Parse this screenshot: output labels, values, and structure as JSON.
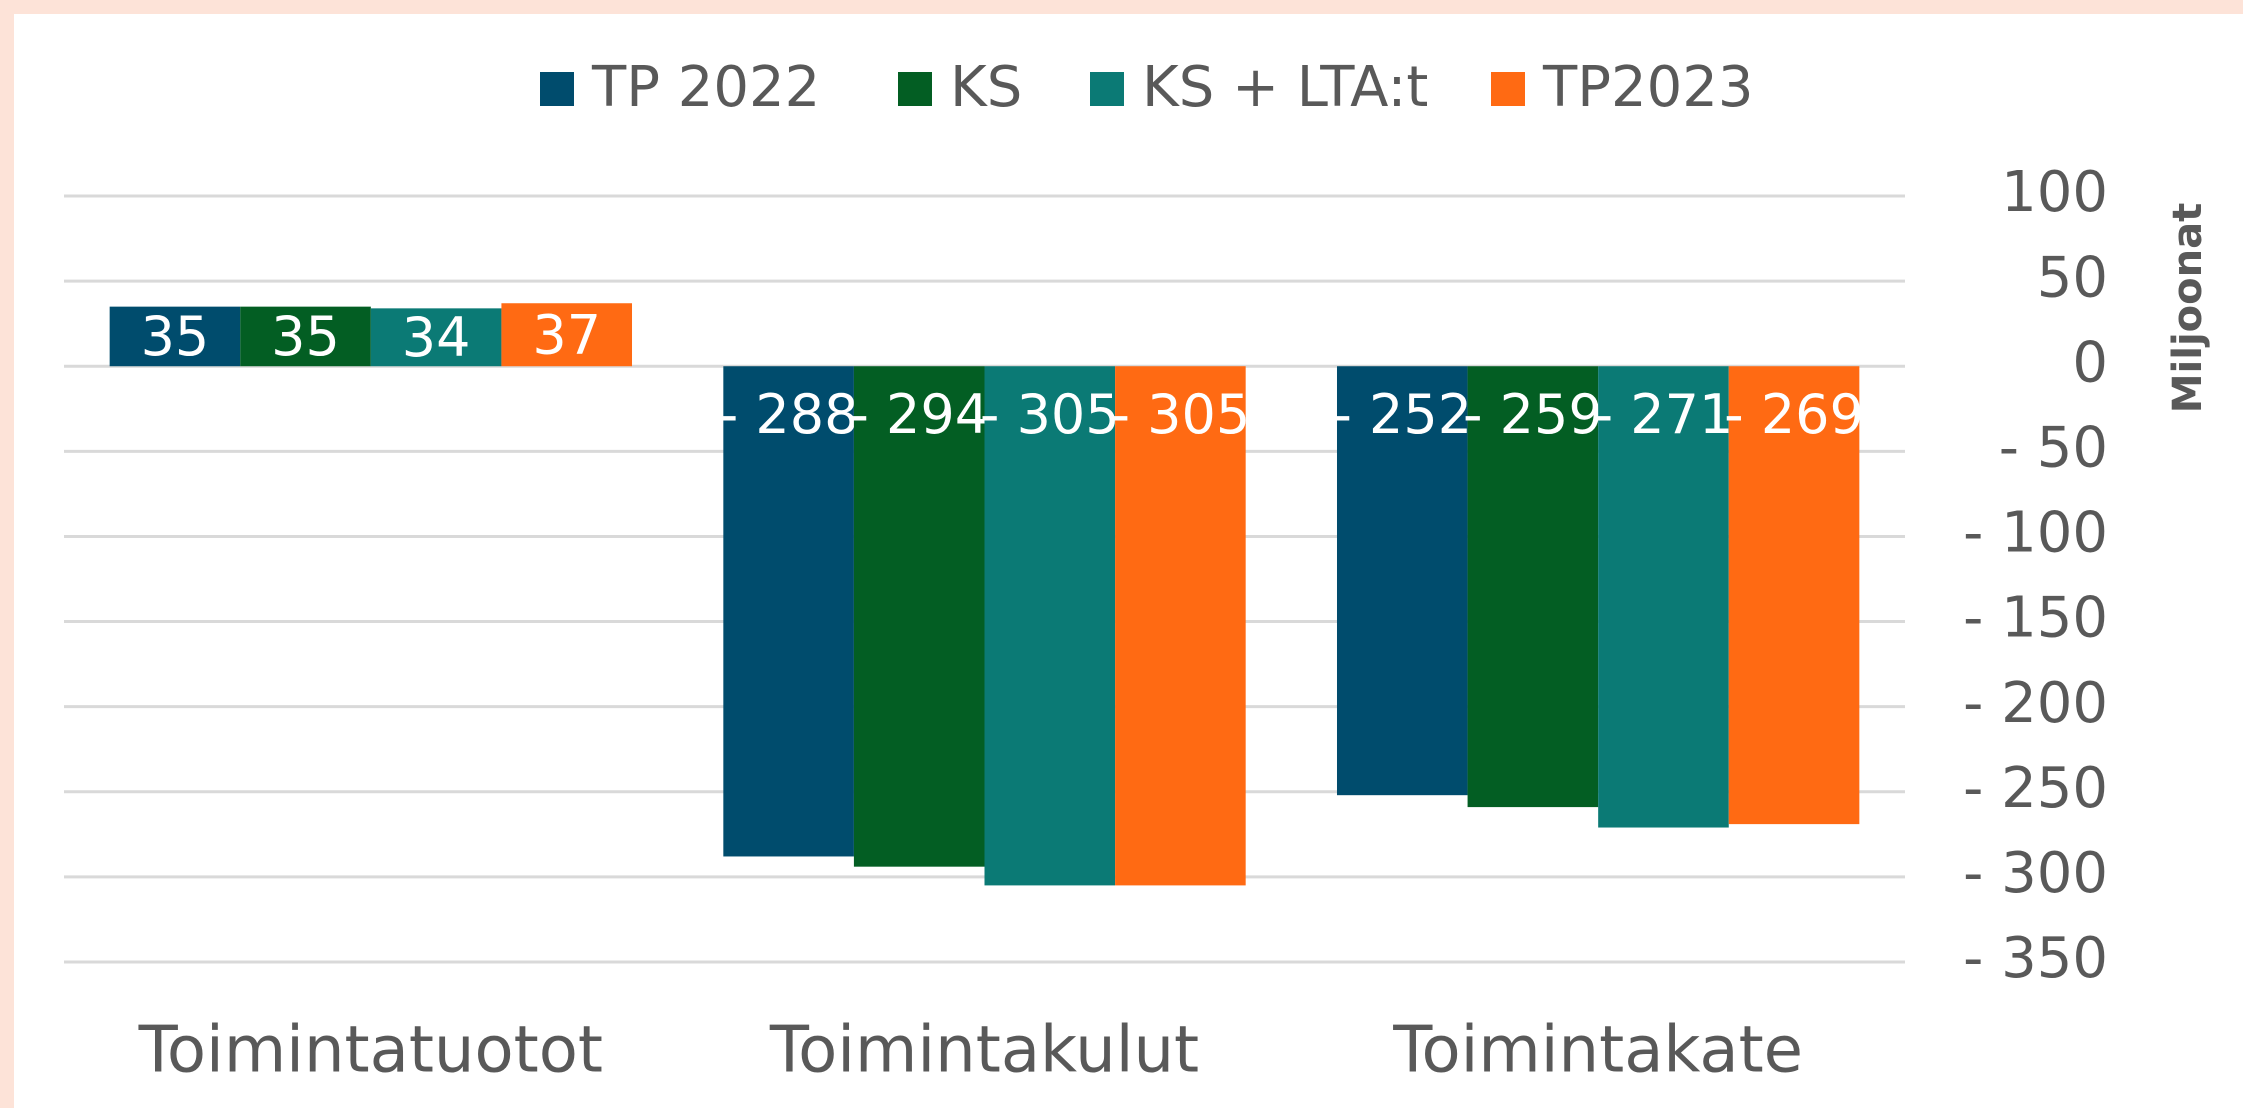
{
  "chart_data": {
    "type": "bar",
    "categories": [
      "Toimintatuotot",
      "Toimintakulut",
      "Toimintakate"
    ],
    "series": [
      {
        "name": "TP 2022",
        "color": "#004c6d",
        "values": [
          35,
          -288,
          -252
        ],
        "value_labels": [
          "35",
          "- 288",
          "- 252"
        ]
      },
      {
        "name": "KS",
        "color": "#035e23",
        "values": [
          35,
          -294,
          -259
        ],
        "value_labels": [
          "35",
          "- 294",
          "- 259"
        ]
      },
      {
        "name": "KS + LTA:t",
        "color": "#0b7a75",
        "values": [
          34,
          -305,
          -271
        ],
        "value_labels": [
          "34",
          "- 305",
          "- 271"
        ]
      },
      {
        "name": "TP2023",
        "color": "#ff6a13",
        "values": [
          37,
          -305,
          -269
        ],
        "value_labels": [
          "37",
          "- 305",
          "- 269"
        ]
      }
    ],
    "ylabel": "Miljoonat",
    "ylim": [
      -350,
      100
    ],
    "yticks": [
      100,
      50,
      0,
      {
        "value": -50,
        "label": "- 50"
      },
      {
        "value": -100,
        "label": "- 100"
      },
      {
        "value": -150,
        "label": "- 150"
      },
      {
        "value": -200,
        "label": "- 200"
      },
      {
        "value": -250,
        "label": "- 250"
      },
      {
        "value": -300,
        "label": "- 300"
      },
      {
        "value": -350,
        "label": "- 350"
      }
    ],
    "grid": true,
    "legend": "top",
    "yaxis_side": "right"
  }
}
